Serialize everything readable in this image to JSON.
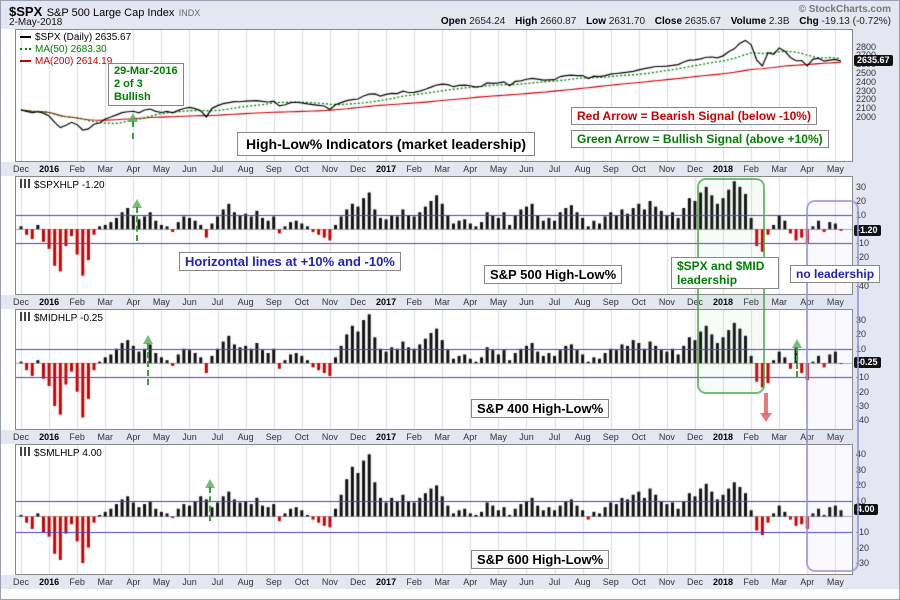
{
  "header": {
    "symbol": "$SPX",
    "name": "S&P 500 Large Cap Index",
    "exchange": "INDX",
    "date": "2-May-2018",
    "copyright": "© StockCharts.com",
    "quote": {
      "open_label": "Open",
      "open": "2654.24",
      "high_label": "High",
      "high": "2660.87",
      "low_label": "Low",
      "low": "2631.70",
      "close_label": "Close",
      "close": "2635.67",
      "volume_label": "Volume",
      "volume": "2.3B",
      "chg_label": "Chg",
      "chg": "-19.13 (-0.72%)"
    }
  },
  "colors": {
    "price_line": "#000000",
    "ma50": "#008000",
    "ma200": "#cc0000",
    "bar_up": "#111111",
    "bar_down": "#cc0000",
    "hline_blue": "#4444bb",
    "grid": "#dcdce8",
    "zero_line": "#aaaaaa",
    "badge_bg": "#111111",
    "badge_fg": "#ffffff",
    "bullish_green": "#008000",
    "bearish_red": "#cc0000",
    "note_blue": "#2222bb",
    "black": "#000000"
  },
  "annotations": {
    "bullish_2016": {
      "line1": "29-Mar-2016",
      "line2": "2 of 3",
      "line3": "Bullish"
    },
    "title": "High-Low% Indicators (market leadership)",
    "red_signal": "Red Arrow = Bearish Signal (below -10%)",
    "green_signal": "Green Arrow = Bullish Signal (above +10%)",
    "hlines_note": "Horizontal lines at +10% and -10%",
    "sp500_label": "S&P 500 High-Low%",
    "leadership": "$SPX and $MID leadership",
    "no_leadership": "no leadership",
    "sp400_label": "S&P 400 High-Low%",
    "sp600_label": "S&P 600 High-Low%"
  },
  "axis": {
    "months": [
      "Dec",
      "2016",
      "Feb",
      "Mar",
      "Apr",
      "May",
      "Jun",
      "Jul",
      "Aug",
      "Sep",
      "Oct",
      "Nov",
      "Dec",
      "2017",
      "Feb",
      "Mar",
      "Apr",
      "May",
      "Jun",
      "Jul",
      "Aug",
      "Sep",
      "Oct",
      "Nov",
      "Dec",
      "2018",
      "Feb",
      "Mar",
      "Apr",
      "May"
    ],
    "year_indices": [
      1,
      13,
      25
    ],
    "points_per_month": 5
  },
  "chart_data": [
    {
      "type": "line",
      "symbol_label": "$SPX (Daily)",
      "symbol_value": "2635.67",
      "ma50_label": "MA(50)",
      "ma50_value": "2683.30",
      "ma200_label": "MA(200)",
      "ma200_value": "2614.19",
      "ma50_window": 12,
      "ma200_window": 48,
      "ylim": [
        1500,
        2990
      ],
      "yticks": [
        2800,
        2700,
        2600,
        2500,
        2400,
        2300,
        2200,
        2100,
        2000
      ],
      "last_value": 2635.67,
      "last_label": "2635.67",
      "values": [
        2080,
        2065,
        2050,
        2060,
        2044,
        2012,
        1940,
        1880,
        1906,
        1940,
        1913,
        1852,
        1865,
        1918,
        1932,
        1978,
        2000,
        2025,
        2050,
        2060,
        2066,
        2048,
        2080,
        2091,
        2065,
        2052,
        2064,
        2047,
        2076,
        2097,
        2109,
        2096,
        2071,
        2001,
        2099,
        2130,
        2152,
        2164,
        2175,
        2174,
        2180,
        2184,
        2187,
        2178,
        2171,
        2180,
        2127,
        2140,
        2163,
        2168,
        2161,
        2150,
        2141,
        2133,
        2126,
        2085,
        2140,
        2164,
        2187,
        2199,
        2205,
        2240,
        2260,
        2263,
        2239,
        2258,
        2269,
        2267,
        2295,
        2279,
        2280,
        2294,
        2316,
        2340,
        2364,
        2375,
        2368,
        2345,
        2360,
        2363,
        2356,
        2340,
        2350,
        2388,
        2384,
        2388,
        2400,
        2357,
        2405,
        2412,
        2430,
        2440,
        2432,
        2420,
        2423,
        2425,
        2460,
        2470,
        2477,
        2470,
        2472,
        2438,
        2465,
        2460,
        2472,
        2488,
        2495,
        2503,
        2510,
        2519,
        2537,
        2550,
        2562,
        2575,
        2575,
        2580,
        2587,
        2597,
        2626,
        2648,
        2651,
        2662,
        2680,
        2683,
        2674,
        2696,
        2743,
        2776,
        2839,
        2872,
        2822,
        2648,
        2581,
        2732,
        2714,
        2786,
        2749,
        2678,
        2640,
        2641,
        2582,
        2656,
        2670,
        2635,
        2648,
        2655,
        2635.67
      ]
    },
    {
      "type": "bar",
      "legend_label": "$SPXHLP",
      "legend_value": "-1.20",
      "panel_title": "S&P 500 High-Low%",
      "ylim": [
        -46,
        37
      ],
      "yticks": [
        30,
        20,
        10,
        -10,
        -20,
        -30,
        -40
      ],
      "hlines": [
        10,
        -10
      ],
      "last_value": -1.2,
      "last_label": "-1.20",
      "values": [
        2,
        -4,
        -7,
        3,
        -9,
        -14,
        -26,
        -30,
        -12,
        -5,
        -18,
        -33,
        -22,
        -4,
        2,
        3,
        5,
        8,
        12,
        15,
        10,
        7,
        9,
        12,
        6,
        3,
        2,
        -2,
        5,
        9,
        8,
        6,
        3,
        -6,
        4,
        9,
        14,
        18,
        12,
        10,
        11,
        9,
        13,
        8,
        6,
        9,
        -3,
        2,
        5,
        6,
        4,
        2,
        -2,
        -4,
        -6,
        -8,
        3,
        9,
        14,
        18,
        16,
        22,
        26,
        14,
        8,
        7,
        10,
        9,
        14,
        10,
        9,
        12,
        16,
        20,
        24,
        18,
        10,
        4,
        6,
        7,
        4,
        2,
        5,
        12,
        10,
        8,
        12,
        3,
        10,
        14,
        16,
        18,
        10,
        6,
        8,
        6,
        12,
        15,
        17,
        12,
        8,
        2,
        6,
        4,
        9,
        12,
        10,
        14,
        11,
        15,
        18,
        14,
        20,
        16,
        13,
        10,
        12,
        8,
        15,
        22,
        20,
        26,
        30,
        24,
        18,
        22,
        28,
        34,
        30,
        25,
        8,
        -12,
        -16,
        -4,
        3,
        10,
        6,
        -3,
        -8,
        -6,
        -10,
        2,
        6,
        -2,
        5,
        4,
        -1.2
      ]
    },
    {
      "type": "bar",
      "legend_label": "$MIDHLP",
      "legend_value": "-0.25",
      "panel_title": "S&P 400 High-Low%",
      "ylim": [
        -46,
        37
      ],
      "yticks": [
        30,
        20,
        10,
        -10,
        -20,
        -30,
        -40
      ],
      "hlines": [
        10,
        -10
      ],
      "last_value": -0.25,
      "last_label": "-0.25",
      "values": [
        1,
        -5,
        -9,
        2,
        -11,
        -16,
        -30,
        -36,
        -15,
        -6,
        -20,
        -38,
        -25,
        -5,
        1,
        4,
        6,
        10,
        14,
        16,
        12,
        8,
        10,
        13,
        7,
        4,
        2,
        -2,
        6,
        10,
        9,
        7,
        4,
        -7,
        5,
        10,
        15,
        19,
        13,
        11,
        12,
        10,
        14,
        9,
        7,
        10,
        -4,
        2,
        6,
        7,
        5,
        2,
        -3,
        -5,
        -7,
        -9,
        4,
        12,
        20,
        26,
        22,
        30,
        34,
        18,
        10,
        8,
        11,
        10,
        15,
        11,
        10,
        13,
        17,
        21,
        24,
        16,
        9,
        3,
        5,
        6,
        3,
        1,
        4,
        11,
        9,
        6,
        9,
        2,
        7,
        10,
        12,
        14,
        8,
        5,
        7,
        5,
        9,
        12,
        13,
        9,
        6,
        1,
        4,
        3,
        7,
        10,
        9,
        13,
        12,
        16,
        14,
        10,
        15,
        12,
        9,
        8,
        10,
        6,
        12,
        18,
        16,
        22,
        26,
        20,
        14,
        18,
        23,
        28,
        24,
        19,
        5,
        -13,
        -17,
        -14,
        2,
        8,
        4,
        -4,
        11,
        -7,
        -12,
        1,
        5,
        -3,
        6,
        8,
        -0.25
      ]
    },
    {
      "type": "bar",
      "legend_label": "$SMLHLP",
      "legend_value": "4.00",
      "panel_title": "S&P 600 High-Low%",
      "ylim": [
        -37,
        46
      ],
      "yticks": [
        40,
        30,
        20,
        10,
        -10,
        -20,
        -30
      ],
      "hlines": [
        10,
        -10
      ],
      "last_value": 4,
      "last_label": "4.00",
      "values": [
        1,
        -4,
        -8,
        2,
        -10,
        -13,
        -24,
        -28,
        -11,
        -5,
        -16,
        -30,
        -20,
        -4,
        1,
        3,
        5,
        8,
        11,
        13,
        9,
        6,
        8,
        10,
        5,
        3,
        2,
        -1,
        5,
        8,
        7,
        10,
        13,
        11,
        6,
        9,
        13,
        16,
        11,
        9,
        10,
        8,
        12,
        7,
        6,
        8,
        -3,
        2,
        5,
        6,
        4,
        1,
        -2,
        -4,
        -6,
        -7,
        5,
        14,
        24,
        32,
        28,
        36,
        40,
        22,
        12,
        9,
        12,
        10,
        14,
        10,
        9,
        12,
        15,
        18,
        20,
        13,
        7,
        2,
        4,
        5,
        2,
        1,
        3,
        9,
        7,
        4,
        6,
        1,
        5,
        8,
        10,
        12,
        7,
        4,
        6,
        4,
        7,
        10,
        11,
        7,
        4,
        -2,
        3,
        2,
        6,
        9,
        8,
        12,
        11,
        14,
        16,
        12,
        18,
        14,
        10,
        8,
        9,
        5,
        10,
        15,
        13,
        18,
        21,
        16,
        11,
        14,
        18,
        22,
        19,
        15,
        4,
        -9,
        -12,
        -4,
        2,
        7,
        3,
        -2,
        -6,
        -5,
        -8,
        2,
        5,
        1,
        6,
        7,
        4
      ]
    }
  ]
}
